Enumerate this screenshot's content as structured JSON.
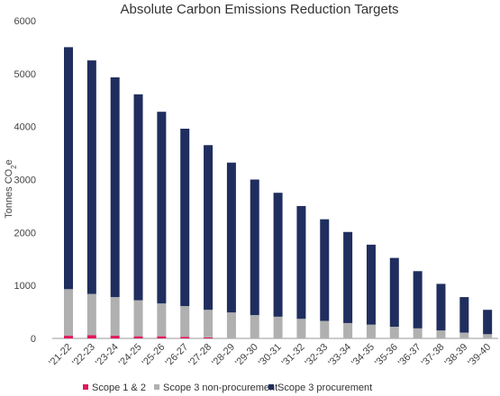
{
  "chart_data": {
    "type": "bar",
    "stacked": true,
    "title": "Absolute Carbon Emissions Reduction Targets",
    "ylabel": "Tonnes CO",
    "ylabel_subscript": "2",
    "ylabel_suffix": "e",
    "xlabel": "",
    "ylim": [
      0,
      6000
    ],
    "yticks": [
      "0",
      "1000",
      "2000",
      "3000",
      "4000",
      "5000",
      "6000"
    ],
    "grid": false,
    "legend_position": "bottom",
    "categories": [
      "'21-22",
      "'22-23",
      "'23-24",
      "'24-25",
      "'25-26",
      "'26-27",
      "'27-28",
      "'28-29",
      "'29-30",
      "'30-31",
      "'31-32",
      "'32-33",
      "'33-34",
      "'34-35",
      "'35-36",
      "'36-37",
      "'37-38",
      "'38-39",
      "'39-40"
    ],
    "series": [
      {
        "name": "Scope 1 & 2",
        "color": "#e0185c",
        "values": [
          50,
          60,
          50,
          40,
          40,
          30,
          20,
          0,
          0,
          0,
          0,
          0,
          0,
          0,
          0,
          0,
          0,
          0,
          0
        ]
      },
      {
        "name": "Scope 3 non-procurement",
        "color": "#b0b0b0",
        "values": [
          880,
          780,
          730,
          680,
          620,
          580,
          520,
          490,
          440,
          410,
          370,
          330,
          290,
          260,
          220,
          190,
          150,
          110,
          80
        ]
      },
      {
        "name": "Scope 3 procurement",
        "color": "#1f2e5e",
        "values": [
          4570,
          4410,
          4150,
          3890,
          3620,
          3350,
          3110,
          2830,
          2560,
          2340,
          2130,
          1920,
          1720,
          1510,
          1300,
          1080,
          880,
          670,
          460
        ]
      }
    ]
  }
}
